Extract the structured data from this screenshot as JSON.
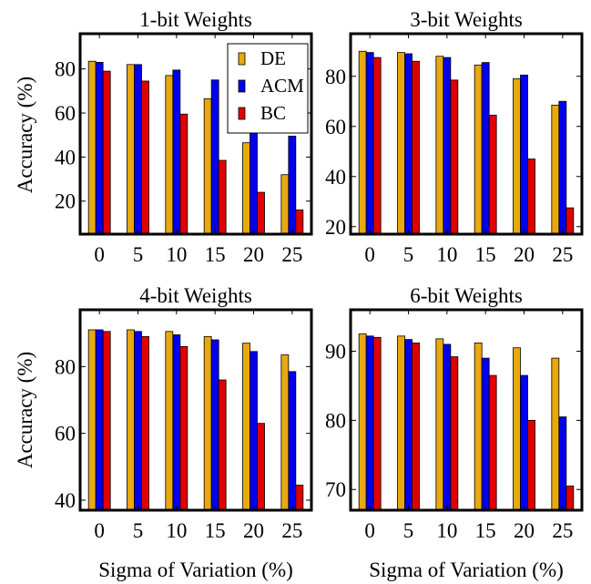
{
  "colors": {
    "DE": "#E8A810",
    "ACM": "#0000EE",
    "BC": "#E00000",
    "frame": "#000000"
  },
  "figure": {
    "xlabel": "Sigma of Variation (%)",
    "ylabel": "Accuracy (%)"
  },
  "legend": {
    "entries": [
      "DE",
      "ACM",
      "BC"
    ],
    "placement": "top-right of first panel"
  },
  "chart_data": [
    {
      "type": "bar",
      "title": "1-bit Weights",
      "categories": [
        "0",
        "5",
        "10",
        "15",
        "20",
        "25"
      ],
      "ylim": [
        5,
        96
      ],
      "yticks": [
        20,
        40,
        60,
        80
      ],
      "series": [
        {
          "name": "DE",
          "values": [
            83.5,
            82,
            77,
            66.5,
            46.5,
            32
          ]
        },
        {
          "name": "ACM",
          "values": [
            83,
            82,
            79.5,
            75,
            65,
            49.5
          ]
        },
        {
          "name": "BC",
          "values": [
            79,
            74.5,
            59.5,
            38.5,
            24,
            16
          ]
        }
      ]
    },
    {
      "type": "bar",
      "title": "3-bit Weights",
      "categories": [
        "0",
        "5",
        "10",
        "15",
        "20",
        "25"
      ],
      "ylim": [
        17,
        97
      ],
      "yticks": [
        20,
        40,
        60,
        80
      ],
      "series": [
        {
          "name": "DE",
          "values": [
            90,
            89.5,
            88,
            84.5,
            79,
            68.5
          ]
        },
        {
          "name": "ACM",
          "values": [
            89.5,
            89,
            87.5,
            85.5,
            80.5,
            70
          ]
        },
        {
          "name": "BC",
          "values": [
            87.5,
            86,
            78.5,
            64.5,
            47,
            27.5
          ]
        }
      ]
    },
    {
      "type": "bar",
      "title": "4-bit Weights",
      "categories": [
        "0",
        "5",
        "10",
        "15",
        "20",
        "25"
      ],
      "ylim": [
        37,
        97
      ],
      "yticks": [
        40,
        60,
        80
      ],
      "series": [
        {
          "name": "DE",
          "values": [
            91,
            91,
            90.5,
            89,
            87,
            83.5
          ]
        },
        {
          "name": "ACM",
          "values": [
            91,
            90.5,
            89.5,
            88,
            84.5,
            78.5
          ]
        },
        {
          "name": "BC",
          "values": [
            90.5,
            89,
            86,
            76,
            63,
            44.5
          ]
        }
      ]
    },
    {
      "type": "bar",
      "title": "6-bit Weights",
      "categories": [
        "0",
        "5",
        "10",
        "15",
        "20",
        "25"
      ],
      "ylim": [
        67,
        96
      ],
      "yticks": [
        70,
        80,
        90
      ],
      "series": [
        {
          "name": "DE",
          "values": [
            92.5,
            92.2,
            91.8,
            91.2,
            90.5,
            89
          ]
        },
        {
          "name": "ACM",
          "values": [
            92.2,
            91.7,
            91,
            89,
            86.5,
            80.5
          ]
        },
        {
          "name": "BC",
          "values": [
            92,
            91.2,
            89.2,
            86.5,
            80,
            70.5
          ]
        }
      ]
    }
  ]
}
